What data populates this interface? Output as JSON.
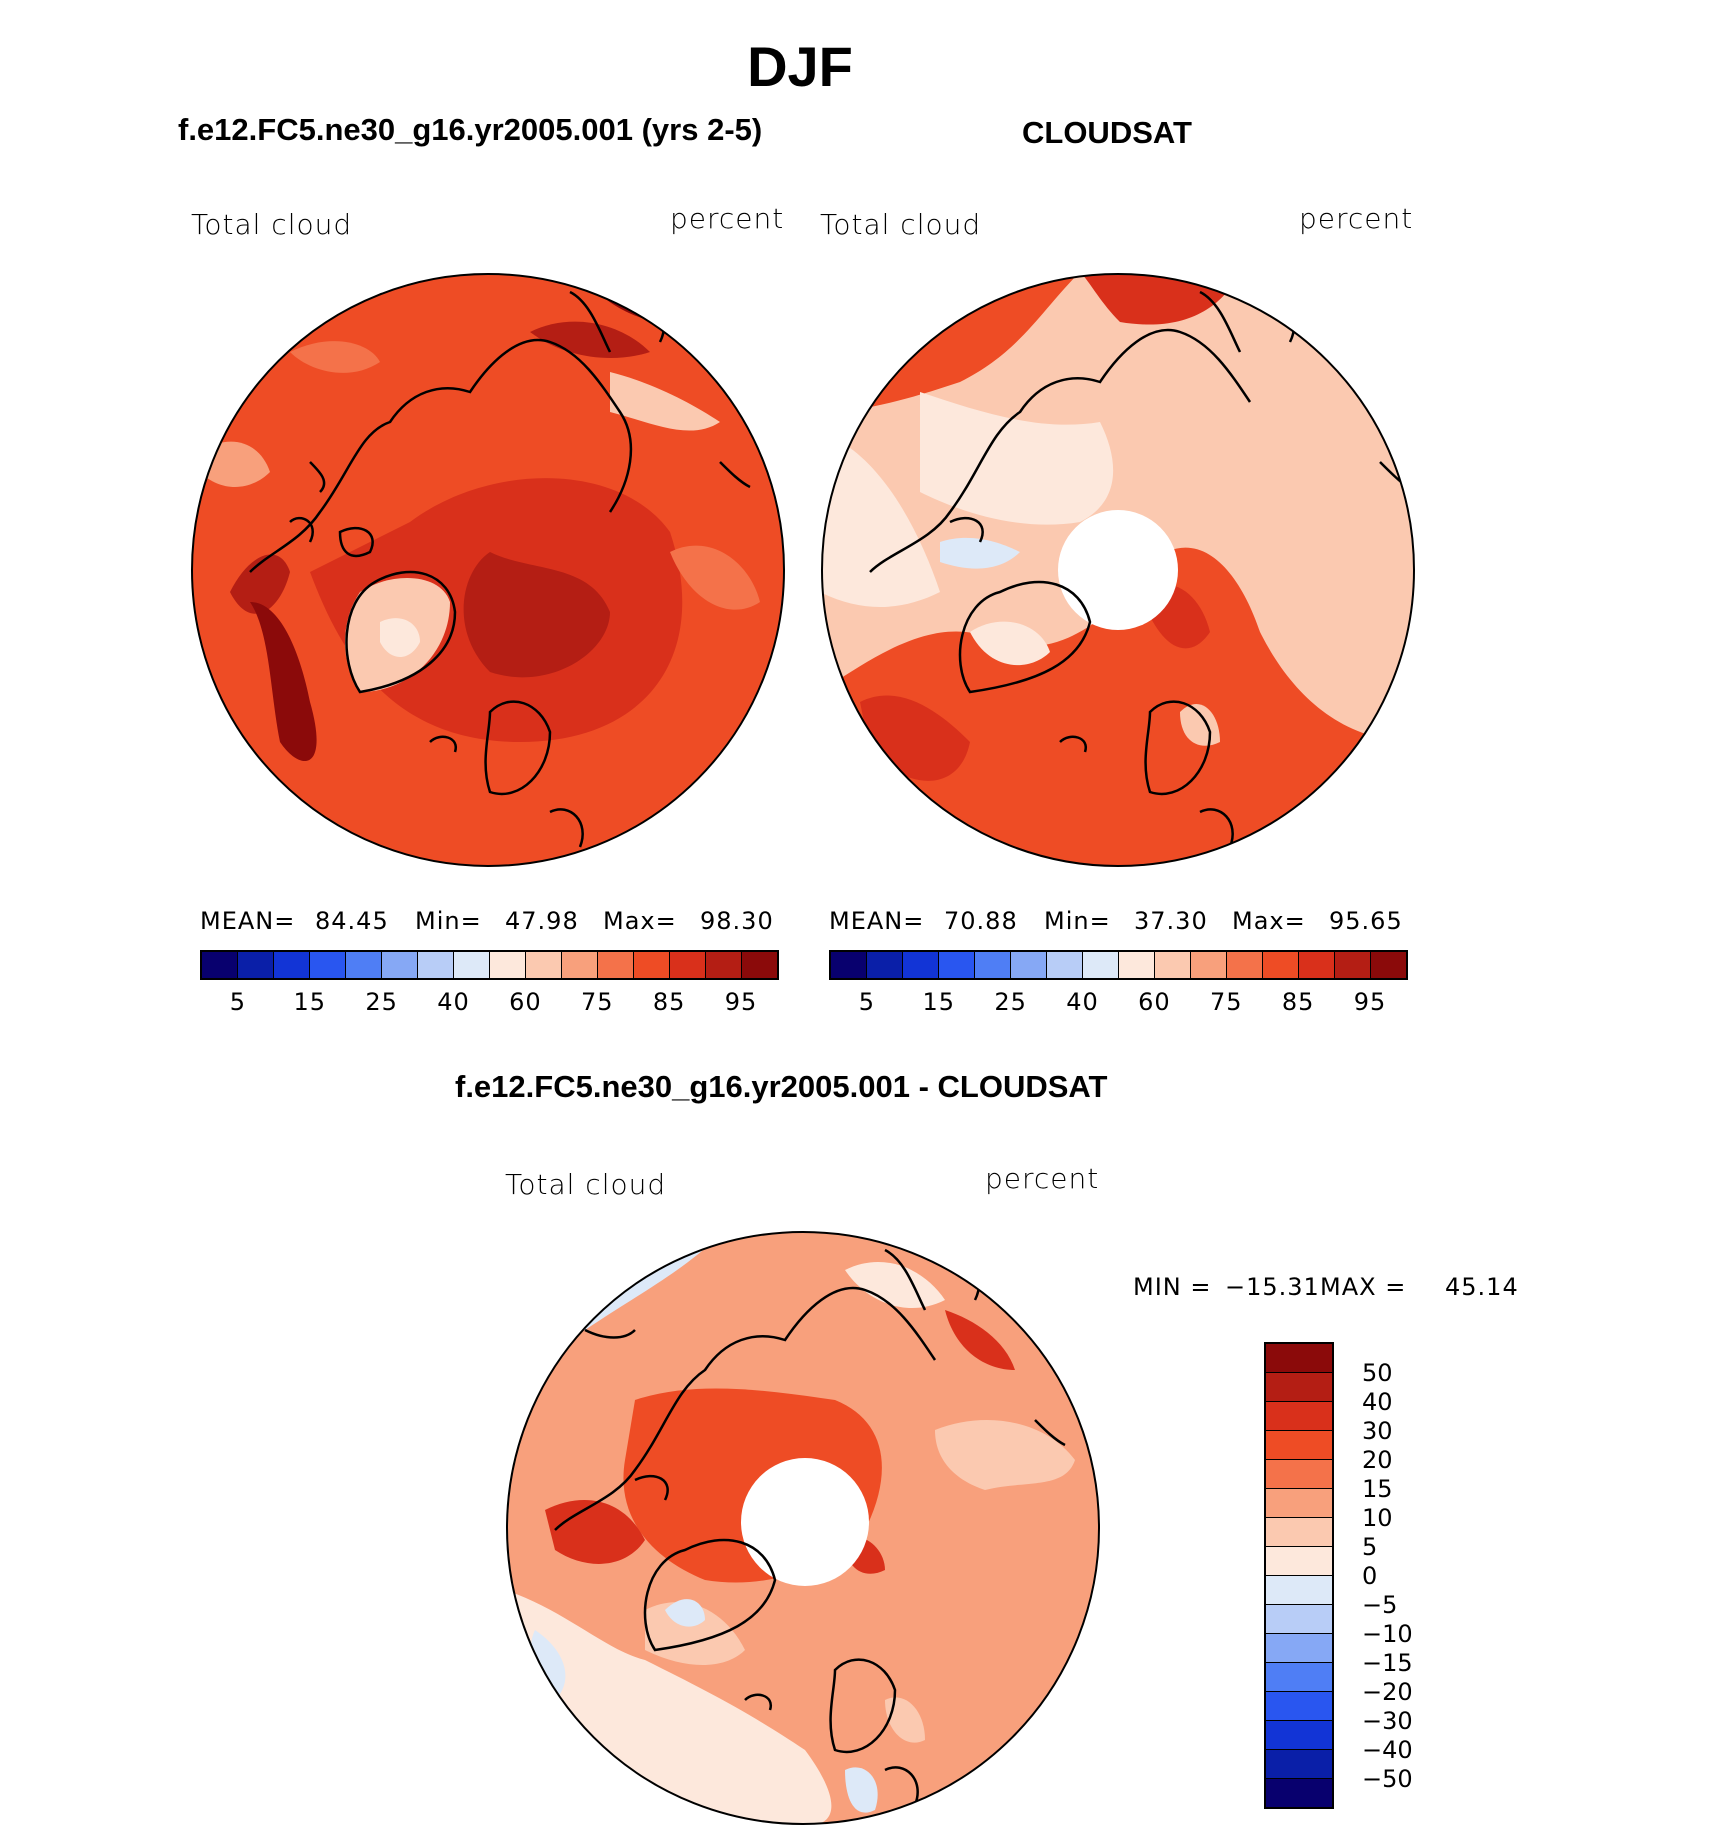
{
  "figure": {
    "title": "DJF",
    "model_case": "f.e12.FC5.ne30_g16.yr2005.001 (yrs 2-5)",
    "obs_name": "CLOUDSAT",
    "diff_title": "f.e12.FC5.ne30_g16.yr2005.001 - CLOUDSAT"
  },
  "panels": {
    "model": {
      "variable": "Total cloud",
      "units": "percent",
      "mean_label": "MEAN=",
      "mean": "84.45",
      "min_label": "Min=",
      "min": "47.98",
      "max_label": "Max=",
      "max": "98.30"
    },
    "obs": {
      "variable": "Total cloud",
      "units": "percent",
      "mean_label": "MEAN=",
      "mean": "70.88",
      "min_label": "Min=",
      "min": "37.30",
      "max_label": "Max=",
      "max": "95.65"
    },
    "diff": {
      "variable": "Total cloud",
      "units": "percent",
      "min_label": "MIN =",
      "min": "−15.31",
      "max_label": "MAX =",
      "max": "45.14"
    }
  },
  "colorbar_abs": {
    "colors": [
      "#08006e",
      "#0a1fa8",
      "#1234d6",
      "#2956f0",
      "#4f7ef5",
      "#86a8f5",
      "#b8cdf7",
      "#dde9f8",
      "#fde8dc",
      "#fbc9b0",
      "#f8a07c",
      "#f4724a",
      "#ee4c25",
      "#d9301b",
      "#b41e14",
      "#8b0a0a"
    ],
    "ticks": [
      "5",
      "15",
      "25",
      "40",
      "60",
      "75",
      "85",
      "95"
    ]
  },
  "colorbar_diff": {
    "colors": [
      "#8b0a0a",
      "#b41e14",
      "#d9301b",
      "#ee4c25",
      "#f4724a",
      "#f8a07c",
      "#fbc9b0",
      "#fde8dc",
      "#dde9f8",
      "#b8cdf7",
      "#86a8f5",
      "#4f7ef5",
      "#2956f0",
      "#1234d6",
      "#0a1fa8",
      "#08006e"
    ],
    "ticks": [
      "50",
      "40",
      "30",
      "20",
      "15",
      "10",
      "5",
      "0",
      "−5",
      "−10",
      "−15",
      "−20",
      "−30",
      "−40",
      "−50"
    ]
  }
}
